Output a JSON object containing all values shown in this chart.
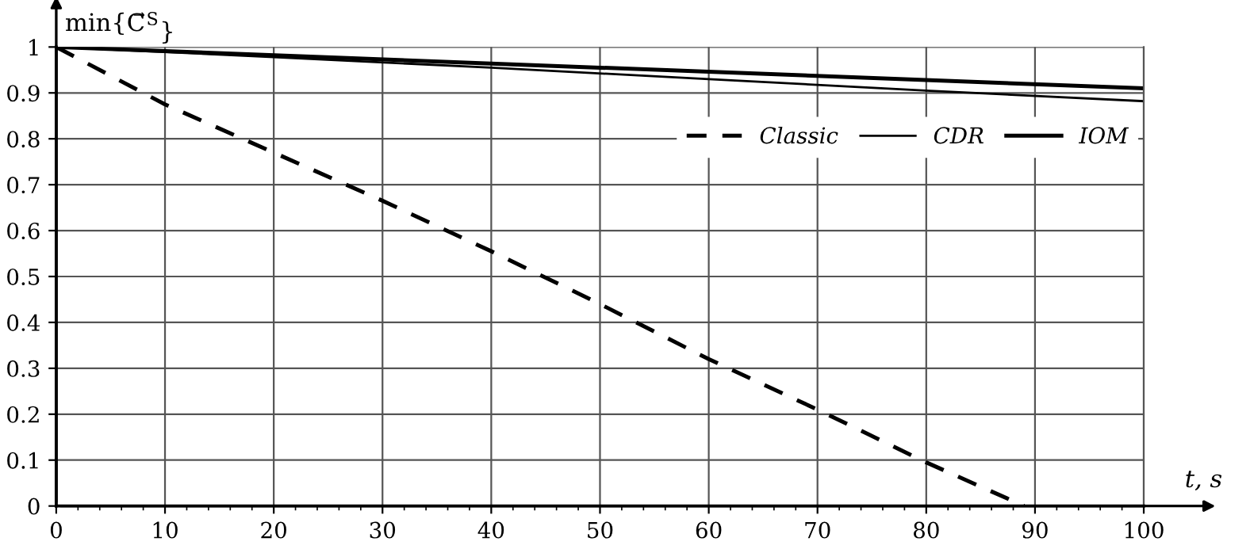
{
  "chart_data": {
    "type": "line",
    "xlabel": "t, s",
    "ylabel": "min{C⃗$^{S}$}",
    "xlim": [
      0,
      100
    ],
    "ylim": [
      0,
      1
    ],
    "xticks": [
      0,
      10,
      20,
      30,
      40,
      50,
      60,
      70,
      80,
      90,
      100
    ],
    "yticks": [
      0,
      0.1,
      0.2,
      0.3,
      0.4,
      0.5,
      0.6,
      0.7,
      0.8,
      0.9,
      1
    ],
    "grid": true,
    "legend": "top right",
    "series": [
      {
        "name": "Classic",
        "color": "#000000",
        "line_style": "dashed",
        "x": [
          0,
          10,
          20,
          30,
          40,
          50,
          60,
          70,
          80,
          89
        ],
        "values": [
          1.0,
          0.875,
          0.77,
          0.665,
          0.555,
          0.44,
          0.32,
          0.21,
          0.095,
          0
        ]
      },
      {
        "name": "CDR",
        "color": "#000000",
        "line_style": "solid",
        "x": [
          0,
          20,
          40,
          60,
          80,
          100
        ],
        "values": [
          1.0,
          0.978,
          0.955,
          0.93,
          0.905,
          0.882
        ]
      },
      {
        "name": "IOM",
        "color": "#000000",
        "line_style": "solid",
        "x": [
          0,
          50,
          100
        ],
        "values": [
          1.0,
          0.955,
          0.91
        ]
      }
    ]
  }
}
